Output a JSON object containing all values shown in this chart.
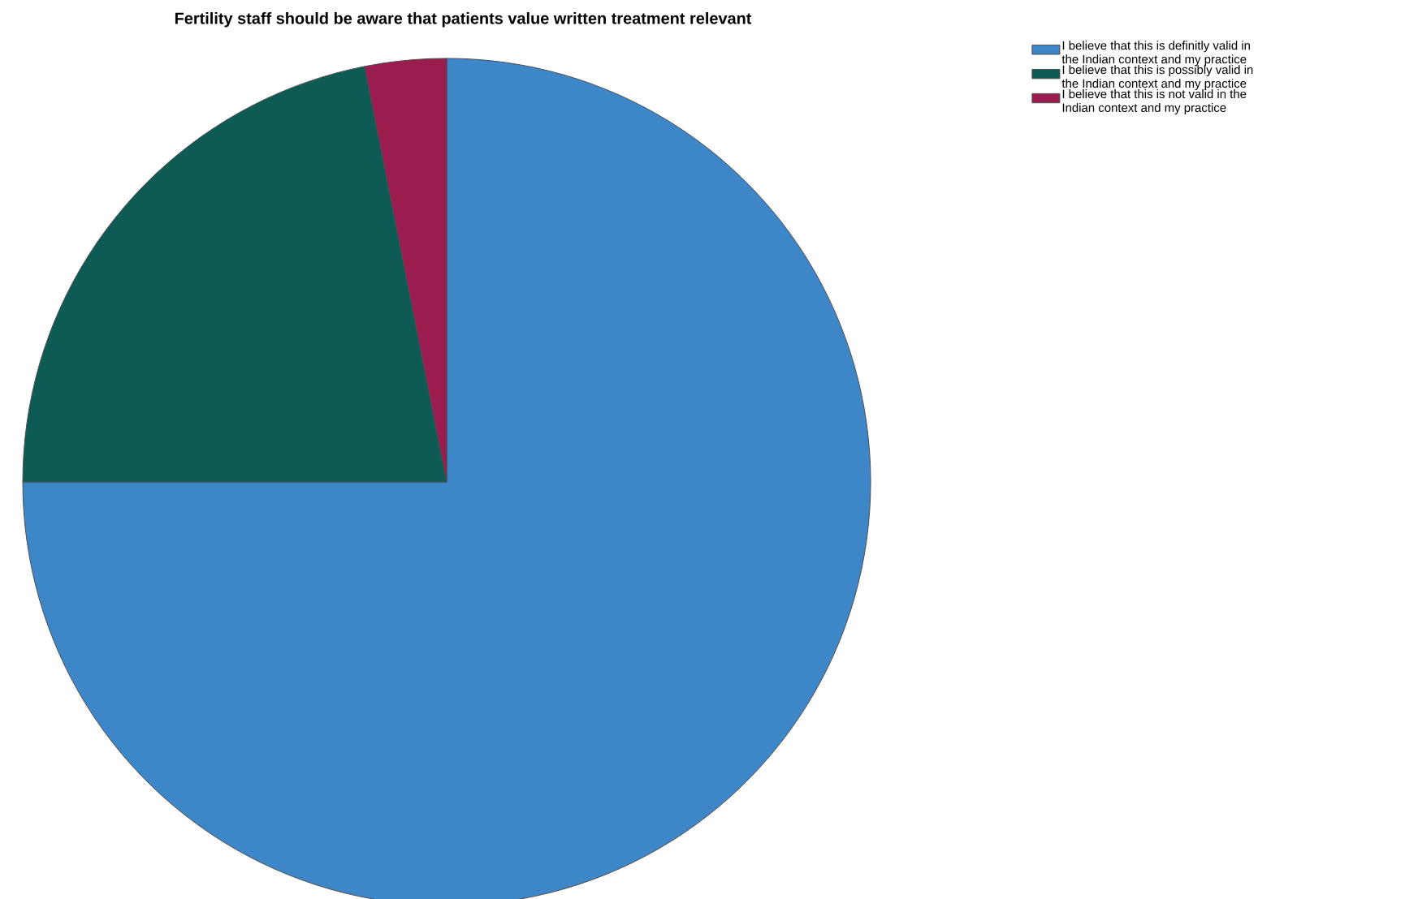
{
  "chart_data": {
    "type": "pie",
    "title": "Fertility staff should be aware that patients value written treatment relevant",
    "categories": [
      "I believe that this is definitly valid in the Indian context and my practice",
      "I believe that this is possibly valid in the Indian context and my practice",
      "I believe that this is not  valid in the Indian context and my practice"
    ],
    "values": [
      75,
      21.9,
      3.1
    ],
    "colors": [
      "#3d87c9",
      "#0e5b55",
      "#9b1d4f"
    ],
    "legend": "top right"
  }
}
